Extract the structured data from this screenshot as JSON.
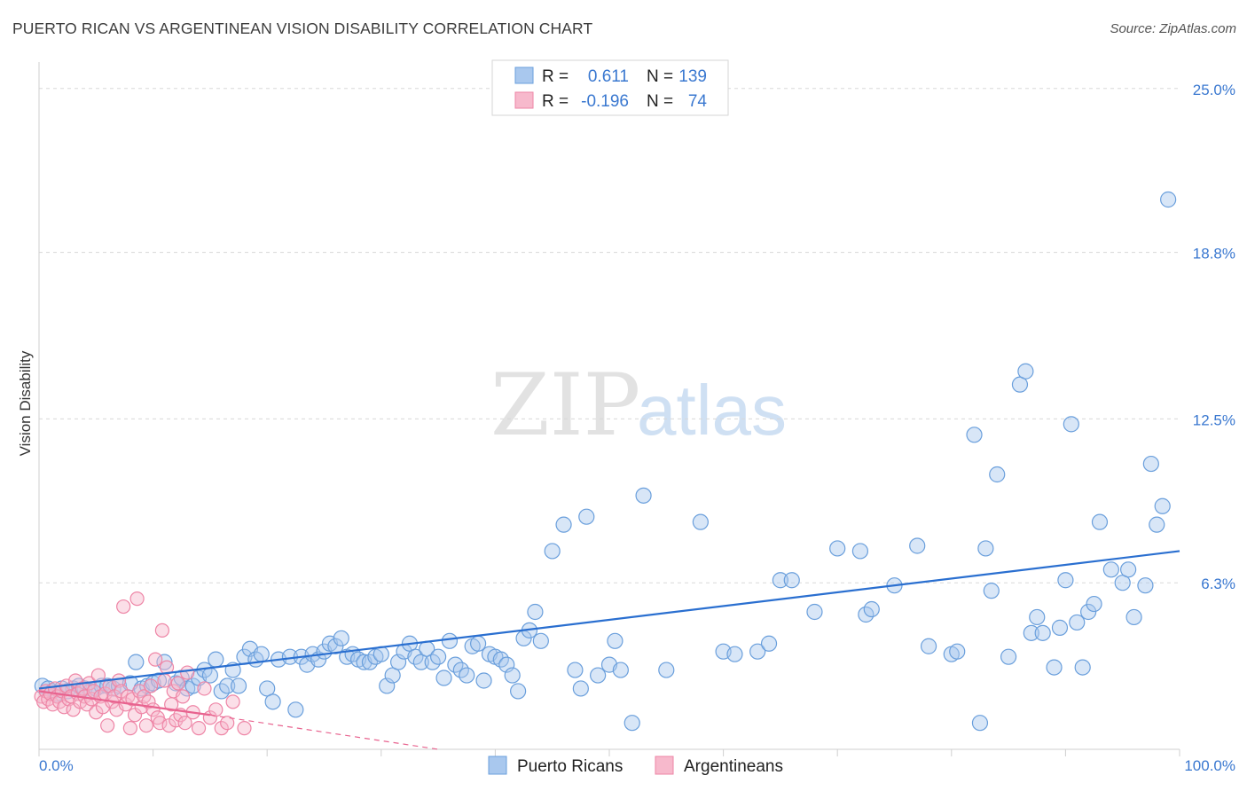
{
  "title": "PUERTO RICAN VS ARGENTINEAN VISION DISABILITY CORRELATION CHART",
  "source": "Source: ZipAtlas.com",
  "watermark": {
    "zip": "ZIP",
    "atlas": "atlas"
  },
  "colors": {
    "blue_fill": "#a9c8ee",
    "blue_stroke": "#6a9fdc",
    "blue_line": "#2a6fd0",
    "pink_fill": "#f7b9cc",
    "pink_stroke": "#ee85a6",
    "pink_line": "#e8638f",
    "grid": "#d8d8d8",
    "tick_text": "#3a78d0"
  },
  "legend": {
    "rows": [
      {
        "r_label": "R =",
        "r_value": "0.611",
        "n_label": "N =",
        "n_value": "139"
      },
      {
        "r_label": "R =",
        "r_value": "-0.196",
        "n_label": "N =",
        "n_value": "74"
      }
    ]
  },
  "chart_data": {
    "type": "scatter",
    "title": "PUERTO RICAN VS ARGENTINEAN VISION DISABILITY CORRELATION CHART",
    "xlabel": "",
    "ylabel": "Vision Disability",
    "xlim": [
      0,
      100
    ],
    "ylim": [
      0,
      26
    ],
    "x_tick_labels": [
      "0.0%",
      "100.0%"
    ],
    "y_ticks": [
      6.3,
      12.5,
      18.8,
      25.0
    ],
    "y_tick_labels": [
      "6.3%",
      "12.5%",
      "18.8%",
      "25.0%"
    ],
    "grid": true,
    "legend_position": "top-center",
    "series": [
      {
        "name": "Puerto Ricans",
        "color": "#a9c8ee",
        "r": 0.611,
        "n": 139,
        "trend": {
          "x": [
            0,
            100
          ],
          "y": [
            2.3,
            7.5
          ]
        },
        "points": [
          [
            0.3,
            2.4
          ],
          [
            0.8,
            2.3
          ],
          [
            1.2,
            2.2
          ],
          [
            1.5,
            2.1
          ],
          [
            2.0,
            2.3
          ],
          [
            2.5,
            2.2
          ],
          [
            3.0,
            2.3
          ],
          [
            3.5,
            2.4
          ],
          [
            4.0,
            2.3
          ],
          [
            4.5,
            2.2
          ],
          [
            5.0,
            2.3
          ],
          [
            5.5,
            2.4
          ],
          [
            6.0,
            2.4
          ],
          [
            6.5,
            2.3
          ],
          [
            7.0,
            2.4
          ],
          [
            8.0,
            2.5
          ],
          [
            8.5,
            3.3
          ],
          [
            9.0,
            2.3
          ],
          [
            9.5,
            2.4
          ],
          [
            10.0,
            2.5
          ],
          [
            10.5,
            2.6
          ],
          [
            11.0,
            3.3
          ],
          [
            12.0,
            2.5
          ],
          [
            12.5,
            2.7
          ],
          [
            13.0,
            2.3
          ],
          [
            13.5,
            2.4
          ],
          [
            14.0,
            2.7
          ],
          [
            14.5,
            3.0
          ],
          [
            15.0,
            2.8
          ],
          [
            15.5,
            3.4
          ],
          [
            16.0,
            2.2
          ],
          [
            16.5,
            2.4
          ],
          [
            17.0,
            3.0
          ],
          [
            17.5,
            2.4
          ],
          [
            18.0,
            3.5
          ],
          [
            18.5,
            3.8
          ],
          [
            19.0,
            3.4
          ],
          [
            19.5,
            3.6
          ],
          [
            20.0,
            2.3
          ],
          [
            20.5,
            1.8
          ],
          [
            21.0,
            3.4
          ],
          [
            22.0,
            3.5
          ],
          [
            22.5,
            1.5
          ],
          [
            23.0,
            3.5
          ],
          [
            23.5,
            3.2
          ],
          [
            24.0,
            3.6
          ],
          [
            24.5,
            3.4
          ],
          [
            25.0,
            3.7
          ],
          [
            25.5,
            4.0
          ],
          [
            26.0,
            3.9
          ],
          [
            26.5,
            4.2
          ],
          [
            27.0,
            3.5
          ],
          [
            27.5,
            3.6
          ],
          [
            28.0,
            3.4
          ],
          [
            28.5,
            3.3
          ],
          [
            29.0,
            3.3
          ],
          [
            29.5,
            3.5
          ],
          [
            30.0,
            3.6
          ],
          [
            30.5,
            2.4
          ],
          [
            31.0,
            2.8
          ],
          [
            31.5,
            3.3
          ],
          [
            32.0,
            3.7
          ],
          [
            32.5,
            4.0
          ],
          [
            33.0,
            3.5
          ],
          [
            33.5,
            3.3
          ],
          [
            34.0,
            3.8
          ],
          [
            34.5,
            3.3
          ],
          [
            35.0,
            3.5
          ],
          [
            35.5,
            2.7
          ],
          [
            36.0,
            4.1
          ],
          [
            36.5,
            3.2
          ],
          [
            37.0,
            3.0
          ],
          [
            37.5,
            2.8
          ],
          [
            38.0,
            3.9
          ],
          [
            38.5,
            4.0
          ],
          [
            39.0,
            2.6
          ],
          [
            39.5,
            3.6
          ],
          [
            40.0,
            3.5
          ],
          [
            40.5,
            3.4
          ],
          [
            41.0,
            3.2
          ],
          [
            41.5,
            2.8
          ],
          [
            42.0,
            2.2
          ],
          [
            42.5,
            4.2
          ],
          [
            43.0,
            4.5
          ],
          [
            43.5,
            5.2
          ],
          [
            44.0,
            4.1
          ],
          [
            45.0,
            7.5
          ],
          [
            46.0,
            8.5
          ],
          [
            47.0,
            3.0
          ],
          [
            47.5,
            2.3
          ],
          [
            48.0,
            8.8
          ],
          [
            49.0,
            2.8
          ],
          [
            50.0,
            3.2
          ],
          [
            50.5,
            4.1
          ],
          [
            51.0,
            3.0
          ],
          [
            52.0,
            1.0
          ],
          [
            53.0,
            9.6
          ],
          [
            55.0,
            3.0
          ],
          [
            58.0,
            8.6
          ],
          [
            60.0,
            3.7
          ],
          [
            61.0,
            3.6
          ],
          [
            63.0,
            3.7
          ],
          [
            64.0,
            4.0
          ],
          [
            65.0,
            6.4
          ],
          [
            66.0,
            6.4
          ],
          [
            68.0,
            5.2
          ],
          [
            70.0,
            7.6
          ],
          [
            72.0,
            7.5
          ],
          [
            72.5,
            5.1
          ],
          [
            73.0,
            5.3
          ],
          [
            75.0,
            6.2
          ],
          [
            77.0,
            7.7
          ],
          [
            78.0,
            3.9
          ],
          [
            80.0,
            3.6
          ],
          [
            80.5,
            3.7
          ],
          [
            82.0,
            11.9
          ],
          [
            82.5,
            1.0
          ],
          [
            83.0,
            7.6
          ],
          [
            83.5,
            6.0
          ],
          [
            84.0,
            10.4
          ],
          [
            85.0,
            3.5
          ],
          [
            86.0,
            13.8
          ],
          [
            86.5,
            14.3
          ],
          [
            87.0,
            4.4
          ],
          [
            87.5,
            5.0
          ],
          [
            88.0,
            4.4
          ],
          [
            89.0,
            3.1
          ],
          [
            89.5,
            4.6
          ],
          [
            90.0,
            6.4
          ],
          [
            90.5,
            12.3
          ],
          [
            91.0,
            4.8
          ],
          [
            91.5,
            3.1
          ],
          [
            92.0,
            5.2
          ],
          [
            92.5,
            5.5
          ],
          [
            93.0,
            8.6
          ],
          [
            94.0,
            6.8
          ],
          [
            95.0,
            6.3
          ],
          [
            95.5,
            6.8
          ],
          [
            96.0,
            5.0
          ],
          [
            97.0,
            6.2
          ],
          [
            97.5,
            10.8
          ],
          [
            98.0,
            8.5
          ],
          [
            98.5,
            9.2
          ],
          [
            99.0,
            20.8
          ]
        ]
      },
      {
        "name": "Argentineans",
        "color": "#f7b9cc",
        "r": -0.196,
        "n": 74,
        "trend": {
          "x": [
            0,
            15
          ],
          "y": [
            2.2,
            1.3
          ]
        },
        "trend_dashed": {
          "x": [
            15,
            35
          ],
          "y": [
            1.3,
            0.0
          ]
        },
        "points": [
          [
            0.2,
            2.0
          ],
          [
            0.4,
            1.8
          ],
          [
            0.6,
            2.2
          ],
          [
            0.8,
            1.9
          ],
          [
            1.0,
            2.1
          ],
          [
            1.2,
            1.7
          ],
          [
            1.4,
            2.3
          ],
          [
            1.6,
            2.0
          ],
          [
            1.8,
            1.8
          ],
          [
            2.0,
            2.2
          ],
          [
            2.2,
            1.6
          ],
          [
            2.4,
            2.4
          ],
          [
            2.6,
            1.9
          ],
          [
            2.8,
            2.0
          ],
          [
            3.0,
            1.5
          ],
          [
            3.2,
            2.6
          ],
          [
            3.4,
            2.1
          ],
          [
            3.6,
            1.8
          ],
          [
            3.8,
            2.3
          ],
          [
            4.0,
            2.0
          ],
          [
            4.2,
            1.7
          ],
          [
            4.4,
            2.5
          ],
          [
            4.6,
            1.9
          ],
          [
            4.8,
            2.2
          ],
          [
            5.0,
            1.4
          ],
          [
            5.2,
            2.8
          ],
          [
            5.4,
            2.0
          ],
          [
            5.6,
            1.6
          ],
          [
            5.8,
            2.1
          ],
          [
            6.0,
            0.9
          ],
          [
            6.2,
            2.4
          ],
          [
            6.4,
            1.8
          ],
          [
            6.6,
            2.0
          ],
          [
            6.8,
            1.5
          ],
          [
            7.0,
            2.6
          ],
          [
            7.2,
            2.2
          ],
          [
            7.4,
            5.4
          ],
          [
            7.6,
            1.7
          ],
          [
            7.8,
            2.0
          ],
          [
            8.0,
            0.8
          ],
          [
            8.2,
            1.9
          ],
          [
            8.4,
            1.3
          ],
          [
            8.6,
            5.7
          ],
          [
            8.8,
            2.2
          ],
          [
            9.0,
            1.6
          ],
          [
            9.2,
            2.0
          ],
          [
            9.4,
            0.9
          ],
          [
            9.6,
            1.8
          ],
          [
            9.8,
            2.4
          ],
          [
            10.0,
            1.5
          ],
          [
            10.2,
            3.4
          ],
          [
            10.4,
            1.2
          ],
          [
            10.6,
            1.0
          ],
          [
            10.8,
            4.5
          ],
          [
            11.0,
            2.6
          ],
          [
            11.2,
            3.1
          ],
          [
            11.4,
            0.9
          ],
          [
            11.6,
            1.7
          ],
          [
            11.8,
            2.2
          ],
          [
            12.0,
            1.1
          ],
          [
            12.2,
            2.5
          ],
          [
            12.4,
            1.3
          ],
          [
            12.6,
            2.0
          ],
          [
            12.8,
            1.0
          ],
          [
            13.0,
            2.9
          ],
          [
            13.5,
            1.4
          ],
          [
            14.0,
            0.8
          ],
          [
            14.5,
            2.3
          ],
          [
            15.0,
            1.2
          ],
          [
            15.5,
            1.5
          ],
          [
            16.0,
            0.8
          ],
          [
            16.5,
            1.0
          ],
          [
            17.0,
            1.8
          ],
          [
            18.0,
            0.8
          ]
        ]
      }
    ]
  }
}
